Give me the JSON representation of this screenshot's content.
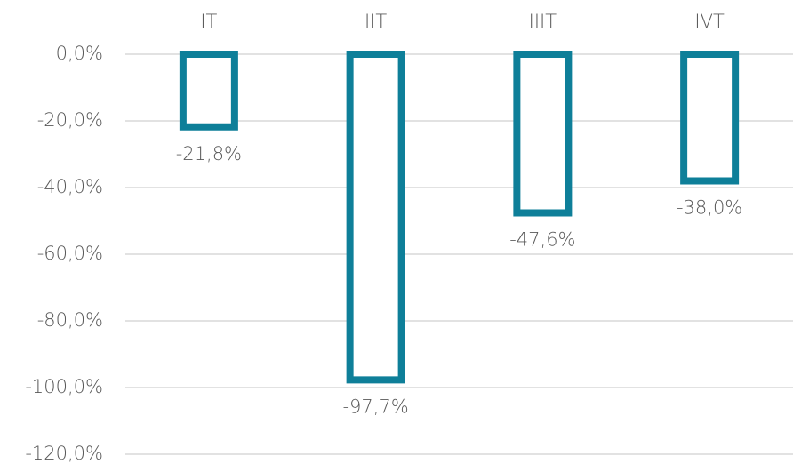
{
  "chart_data": {
    "type": "bar",
    "categories": [
      "IT",
      "IIT",
      "IIIT",
      "IVT"
    ],
    "values": [
      -21.8,
      -97.7,
      -47.6,
      -38.0
    ],
    "value_labels": [
      "-21,8%",
      "-97,7%",
      "-47,6%",
      "-38,0%"
    ],
    "color": "#0e7f99",
    "ylim": [
      -120,
      0
    ],
    "yticks": [
      {
        "value": 0,
        "label": "0,0%"
      },
      {
        "value": -20,
        "label": "-20,0%"
      },
      {
        "value": -40,
        "label": "-40,0%"
      },
      {
        "value": -60,
        "label": "-60,0%"
      },
      {
        "value": -80,
        "label": "-80,0%"
      },
      {
        "value": -100,
        "label": "-100,0%"
      },
      {
        "value": -120,
        "label": "-120,0%"
      }
    ],
    "grid": true
  }
}
